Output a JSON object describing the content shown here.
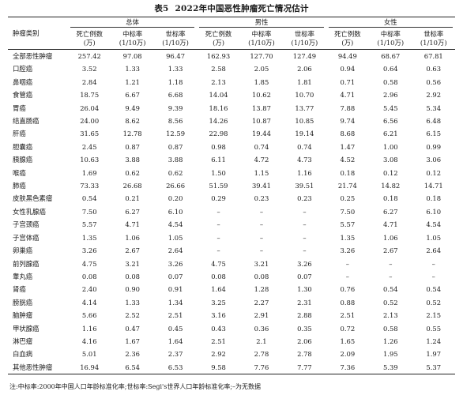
{
  "title": {
    "number": "表5",
    "text": "2022年中国恶性肿瘤死亡情况估计"
  },
  "header": {
    "category": "肿瘤类别",
    "groups": [
      "总体",
      "男性",
      "女性"
    ],
    "subheaders": [
      [
        "死亡例数",
        "(万)"
      ],
      [
        "中标率",
        "(1/10万)"
      ],
      [
        "世标率",
        "(1/10万)"
      ]
    ]
  },
  "rows": [
    {
      "name": "全部恶性肿瘤",
      "values": [
        "257.42",
        "97.08",
        "96.47",
        "162.93",
        "127.70",
        "127.49",
        "94.49",
        "68.67",
        "67.81"
      ]
    },
    {
      "name": "口腔癌",
      "values": [
        "3.52",
        "1.33",
        "1.33",
        "2.58",
        "2.05",
        "2.06",
        "0.94",
        "0.64",
        "0.63"
      ]
    },
    {
      "name": "鼻咽癌",
      "values": [
        "2.84",
        "1.21",
        "1.18",
        "2.13",
        "1.85",
        "1.81",
        "0.71",
        "0.58",
        "0.56"
      ]
    },
    {
      "name": "食管癌",
      "values": [
        "18.75",
        "6.67",
        "6.68",
        "14.04",
        "10.62",
        "10.70",
        "4.71",
        "2.96",
        "2.92"
      ]
    },
    {
      "name": "胃癌",
      "values": [
        "26.04",
        "9.49",
        "9.39",
        "18.16",
        "13.87",
        "13.77",
        "7.88",
        "5.45",
        "5.34"
      ]
    },
    {
      "name": "结直肠癌",
      "values": [
        "24.00",
        "8.62",
        "8.56",
        "14.26",
        "10.87",
        "10.85",
        "9.74",
        "6.56",
        "6.48"
      ]
    },
    {
      "name": "肝癌",
      "values": [
        "31.65",
        "12.78",
        "12.59",
        "22.98",
        "19.44",
        "19.14",
        "8.68",
        "6.21",
        "6.15"
      ]
    },
    {
      "name": "胆囊癌",
      "values": [
        "2.45",
        "0.87",
        "0.87",
        "0.98",
        "0.74",
        "0.74",
        "1.47",
        "1.00",
        "0.99"
      ]
    },
    {
      "name": "胰腺癌",
      "values": [
        "10.63",
        "3.88",
        "3.88",
        "6.11",
        "4.72",
        "4.73",
        "4.52",
        "3.08",
        "3.06"
      ]
    },
    {
      "name": "喉癌",
      "values": [
        "1.69",
        "0.62",
        "0.62",
        "1.50",
        "1.15",
        "1.16",
        "0.18",
        "0.12",
        "0.12"
      ]
    },
    {
      "name": "肺癌",
      "values": [
        "73.33",
        "26.68",
        "26.66",
        "51.59",
        "39.41",
        "39.51",
        "21.74",
        "14.82",
        "14.71"
      ]
    },
    {
      "name": "皮肤黑色素瘤",
      "values": [
        "0.54",
        "0.21",
        "0.20",
        "0.29",
        "0.23",
        "0.23",
        "0.25",
        "0.18",
        "0.18"
      ]
    },
    {
      "name": "女性乳腺癌",
      "values": [
        "7.50",
        "6.27",
        "6.10",
        "–",
        "–",
        "–",
        "7.50",
        "6.27",
        "6.10"
      ]
    },
    {
      "name": "子宫颈癌",
      "values": [
        "5.57",
        "4.71",
        "4.54",
        "–",
        "–",
        "–",
        "5.57",
        "4.71",
        "4.54"
      ]
    },
    {
      "name": "子宫体癌",
      "values": [
        "1.35",
        "1.06",
        "1.05",
        "–",
        "–",
        "–",
        "1.35",
        "1.06",
        "1.05"
      ]
    },
    {
      "name": "卵巢癌",
      "values": [
        "3.26",
        "2.67",
        "2.64",
        "–",
        "–",
        "–",
        "3.26",
        "2.67",
        "2.64"
      ]
    },
    {
      "name": "前列腺癌",
      "values": [
        "4.75",
        "3.21",
        "3.26",
        "4.75",
        "3.21",
        "3.26",
        "–",
        "–",
        "–"
      ]
    },
    {
      "name": "睾丸癌",
      "values": [
        "0.08",
        "0.08",
        "0.07",
        "0.08",
        "0.08",
        "0.07",
        "–",
        "–",
        "–"
      ]
    },
    {
      "name": "肾癌",
      "values": [
        "2.40",
        "0.90",
        "0.91",
        "1.64",
        "1.28",
        "1.30",
        "0.76",
        "0.54",
        "0.54"
      ]
    },
    {
      "name": "膀胱癌",
      "values": [
        "4.14",
        "1.33",
        "1.34",
        "3.25",
        "2.27",
        "2.31",
        "0.88",
        "0.52",
        "0.52"
      ]
    },
    {
      "name": "脑肿瘤",
      "values": [
        "5.66",
        "2.52",
        "2.51",
        "3.16",
        "2.91",
        "2.88",
        "2.51",
        "2.13",
        "2.15"
      ]
    },
    {
      "name": "甲状腺癌",
      "values": [
        "1.16",
        "0.47",
        "0.45",
        "0.43",
        "0.36",
        "0.35",
        "0.72",
        "0.58",
        "0.55"
      ]
    },
    {
      "name": "淋巴瘤",
      "values": [
        "4.16",
        "1.67",
        "1.64",
        "2.51",
        "2.1",
        "2.06",
        "1.65",
        "1.26",
        "1.24"
      ]
    },
    {
      "name": "白血病",
      "values": [
        "5.01",
        "2.36",
        "2.37",
        "2.92",
        "2.78",
        "2.78",
        "2.09",
        "1.95",
        "1.97"
      ]
    },
    {
      "name": "其他恶性肿瘤",
      "values": [
        "16.94",
        "6.54",
        "6.53",
        "9.58",
        "7.76",
        "7.77",
        "7.36",
        "5.39",
        "5.37"
      ]
    }
  ],
  "note": "注:中标率:2000年中国人口年龄标准化率;世标率:Segi's世界人口年龄标准化率;–为无数据"
}
